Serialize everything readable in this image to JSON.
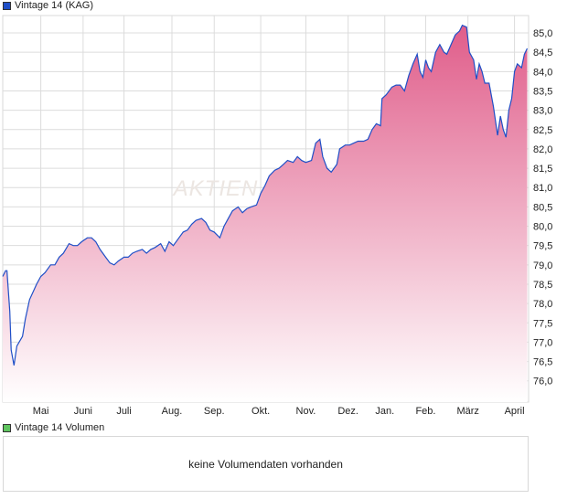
{
  "chart_data": {
    "type": "area",
    "legend": "Vintage 14 (KAG)",
    "line_color": "#1f4fc7",
    "fill_top_color": "#e05d8a",
    "watermark": "AKTIEN",
    "x_unit": "days since start (early April)",
    "ylim": [
      75.45,
      85.45
    ],
    "yticks": [
      76.0,
      76.5,
      77.0,
      77.5,
      78.0,
      78.5,
      79.0,
      79.5,
      80.0,
      80.5,
      81.0,
      81.5,
      82.0,
      82.5,
      83.0,
      83.5,
      84.0,
      84.5,
      85.0
    ],
    "ytick_labels": [
      "76,0",
      "76,5",
      "77,0",
      "77,5",
      "78,0",
      "78,5",
      "79,0",
      "79,5",
      "80,0",
      "80,5",
      "81,0",
      "81,5",
      "82,0",
      "82,5",
      "83,0",
      "83,5",
      "84,0",
      "84,5",
      "85,0"
    ],
    "xlim": [
      0,
      373
    ],
    "xticks": [
      27,
      57,
      86,
      120,
      150,
      183,
      215,
      245,
      271,
      300,
      330,
      363
    ],
    "xtick_labels": [
      "Mai",
      "Juni",
      "Juli",
      "Aug.",
      "Sep.",
      "Okt.",
      "Nov.",
      "Dez.",
      "Jan.",
      "Feb.",
      "März",
      "April"
    ],
    "x": [
      0,
      2,
      3,
      5,
      6,
      8,
      10,
      14,
      16,
      19,
      24,
      27,
      30,
      34,
      37,
      40,
      43,
      47,
      50,
      53,
      56,
      60,
      63,
      66,
      69,
      73,
      76,
      79,
      82,
      86,
      89,
      92,
      95,
      99,
      102,
      105,
      108,
      112,
      115,
      118,
      121,
      125,
      128,
      131,
      134,
      137,
      141,
      144,
      147,
      150,
      154,
      157,
      160,
      163,
      167,
      170,
      173,
      176,
      180,
      183,
      186,
      189,
      193,
      196,
      199,
      202,
      206,
      209,
      212,
      215,
      219,
      222,
      225,
      227,
      230,
      233,
      237,
      239,
      243,
      246,
      249,
      252,
      256,
      259,
      262,
      265,
      268,
      269,
      272,
      276,
      279,
      282,
      285,
      288,
      291,
      294,
      296,
      298,
      300,
      302,
      304,
      307,
      310,
      313,
      315,
      318,
      321,
      324,
      326,
      329,
      331,
      334,
      336,
      338,
      340,
      342,
      345,
      348,
      351,
      353,
      355,
      357,
      359,
      361,
      363,
      365,
      368,
      370,
      372
    ],
    "y": [
      78.7,
      78.85,
      78.85,
      77.8,
      76.8,
      76.4,
      76.9,
      77.15,
      77.6,
      78.1,
      78.5,
      78.7,
      78.8,
      79.0,
      79.0,
      79.2,
      79.3,
      79.55,
      79.5,
      79.5,
      79.6,
      79.7,
      79.7,
      79.6,
      79.4,
      79.2,
      79.05,
      79.0,
      79.1,
      79.2,
      79.2,
      79.3,
      79.35,
      79.4,
      79.3,
      79.4,
      79.45,
      79.55,
      79.35,
      79.6,
      79.5,
      79.7,
      79.85,
      79.9,
      80.05,
      80.15,
      80.2,
      80.1,
      79.9,
      79.85,
      79.7,
      80.0,
      80.2,
      80.4,
      80.5,
      80.35,
      80.45,
      80.5,
      80.55,
      80.85,
      81.05,
      81.3,
      81.45,
      81.5,
      81.6,
      81.7,
      81.65,
      81.8,
      81.7,
      81.65,
      81.7,
      82.15,
      82.25,
      81.8,
      81.5,
      81.4,
      81.6,
      82.0,
      82.1,
      82.1,
      82.15,
      82.2,
      82.2,
      82.25,
      82.5,
      82.65,
      82.6,
      83.3,
      83.4,
      83.6,
      83.65,
      83.65,
      83.5,
      83.9,
      84.2,
      84.45,
      84.0,
      83.85,
      84.3,
      84.1,
      84.0,
      84.5,
      84.7,
      84.5,
      84.45,
      84.7,
      84.95,
      85.05,
      85.2,
      85.15,
      84.5,
      84.3,
      83.8,
      84.2,
      84.0,
      83.7,
      83.7,
      83.1,
      82.35,
      82.85,
      82.5,
      82.3,
      83.0,
      83.3,
      84.0,
      84.2,
      84.1,
      84.45,
      84.6
    ]
  },
  "volume": {
    "legend": "Vintage 14 Volumen",
    "legend_color": "#5fc45f",
    "message": "keine Volumendaten vorhanden"
  }
}
